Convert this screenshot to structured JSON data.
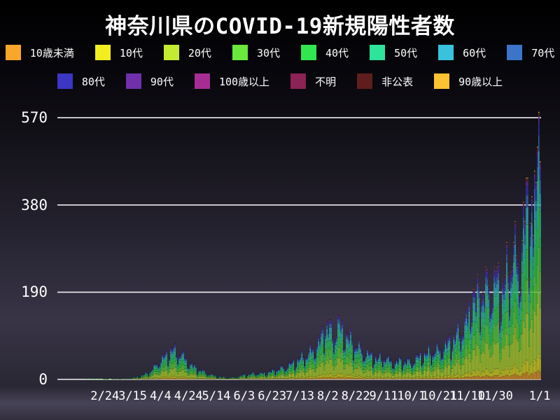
{
  "title": "神奈川県のCOVID-19新規陽性者数",
  "colors": {
    "background_top": "#000000",
    "background_bottom": "#474356",
    "grid_line": "#ffffff",
    "text": "#ffffff"
  },
  "chart_data": {
    "type": "bar",
    "stacked": true,
    "title": "神奈川県のCOVID-19新規陽性者数",
    "xlabel": "",
    "ylabel": "",
    "ylim": [
      0,
      590
    ],
    "y_ticks": [
      0,
      190,
      380,
      570
    ],
    "grid": true,
    "legend_position": "top",
    "x_start_date": "1/25",
    "x_end_date": "1/1",
    "x_range_days": 343,
    "x_ticks": [
      {
        "label": "2/24",
        "day": 30
      },
      {
        "label": "3/15",
        "day": 50
      },
      {
        "label": "4/4",
        "day": 70
      },
      {
        "label": "4/24",
        "day": 90
      },
      {
        "label": "5/14",
        "day": 110
      },
      {
        "label": "6/3",
        "day": 130
      },
      {
        "label": "6/23",
        "day": 150
      },
      {
        "label": "7/13",
        "day": 170
      },
      {
        "label": "8/2",
        "day": 190
      },
      {
        "label": "8/22",
        "day": 210
      },
      {
        "label": "9/11",
        "day": 230
      },
      {
        "label": "10/1",
        "day": 250
      },
      {
        "label": "10/21",
        "day": 270
      },
      {
        "label": "11/10",
        "day": 290
      },
      {
        "label": "11/30",
        "day": 310
      },
      {
        "label": "1/1",
        "day": 342
      }
    ],
    "age_groups": [
      {
        "name": "10歳未満",
        "color": "#f9a72b",
        "share": 0.035
      },
      {
        "name": "10代",
        "color": "#f2ee1f",
        "share": 0.06
      },
      {
        "name": "20代",
        "color": "#c3ec30",
        "share": 0.233
      },
      {
        "name": "30代",
        "color": "#6ae83c",
        "share": 0.165
      },
      {
        "name": "40代",
        "color": "#31e74f",
        "share": 0.15
      },
      {
        "name": "50代",
        "color": "#2ee39a",
        "share": 0.125
      },
      {
        "name": "60代",
        "color": "#37c3dc",
        "share": 0.085
      },
      {
        "name": "70代",
        "color": "#3b74c8",
        "share": 0.06
      },
      {
        "name": "80代",
        "color": "#3b36c4",
        "share": 0.045
      },
      {
        "name": "90代",
        "color": "#7030ac",
        "share": 0.022
      },
      {
        "name": "100歳以上",
        "color": "#a72d95",
        "share": 0.003
      },
      {
        "name": "不明",
        "color": "#8c2256",
        "share": 0.005
      },
      {
        "name": "非公表",
        "color": "#5f1e1e",
        "share": 0.007
      },
      {
        "name": "90歳以上",
        "color": "#fbc232",
        "share": 0.005
      }
    ],
    "legend_rows": [
      [
        0,
        1,
        2,
        3,
        4,
        5,
        6,
        7
      ],
      [
        8,
        9,
        10,
        11,
        12,
        13
      ]
    ],
    "daily_total_anchors": [
      [
        0,
        0
      ],
      [
        14,
        0
      ],
      [
        20,
        1
      ],
      [
        25,
        1
      ],
      [
        30,
        2
      ],
      [
        35,
        2
      ],
      [
        40,
        3
      ],
      [
        45,
        3
      ],
      [
        50,
        5
      ],
      [
        55,
        8
      ],
      [
        58,
        12
      ],
      [
        62,
        18
      ],
      [
        65,
        28
      ],
      [
        68,
        40
      ],
      [
        71,
        48
      ],
      [
        74,
        55
      ],
      [
        78,
        70
      ],
      [
        81,
        58
      ],
      [
        84,
        62
      ],
      [
        87,
        48
      ],
      [
        90,
        38
      ],
      [
        94,
        28
      ],
      [
        98,
        22
      ],
      [
        102,
        16
      ],
      [
        106,
        12
      ],
      [
        110,
        8
      ],
      [
        114,
        6
      ],
      [
        118,
        5
      ],
      [
        122,
        6
      ],
      [
        126,
        8
      ],
      [
        130,
        11
      ],
      [
        134,
        13
      ],
      [
        138,
        15
      ],
      [
        142,
        14
      ],
      [
        146,
        16
      ],
      [
        150,
        19
      ],
      [
        154,
        24
      ],
      [
        158,
        28
      ],
      [
        162,
        33
      ],
      [
        166,
        40
      ],
      [
        170,
        48
      ],
      [
        174,
        56
      ],
      [
        178,
        65
      ],
      [
        182,
        78
      ],
      [
        185,
        92
      ],
      [
        188,
        128
      ],
      [
        191,
        112
      ],
      [
        194,
        98
      ],
      [
        197,
        125
      ],
      [
        200,
        115
      ],
      [
        203,
        98
      ],
      [
        206,
        88
      ],
      [
        210,
        78
      ],
      [
        214,
        65
      ],
      [
        218,
        58
      ],
      [
        222,
        52
      ],
      [
        226,
        46
      ],
      [
        230,
        52
      ],
      [
        234,
        42
      ],
      [
        238,
        37
      ],
      [
        242,
        44
      ],
      [
        246,
        40
      ],
      [
        250,
        42
      ],
      [
        254,
        50
      ],
      [
        258,
        56
      ],
      [
        262,
        60
      ],
      [
        266,
        64
      ],
      [
        270,
        68
      ],
      [
        274,
        76
      ],
      [
        278,
        88
      ],
      [
        282,
        100
      ],
      [
        286,
        115
      ],
      [
        290,
        135
      ],
      [
        293,
        200
      ],
      [
        296,
        165
      ],
      [
        299,
        210
      ],
      [
        302,
        185
      ],
      [
        305,
        220
      ],
      [
        308,
        195
      ],
      [
        311,
        230
      ],
      [
        314,
        190
      ],
      [
        317,
        215
      ],
      [
        320,
        255
      ],
      [
        323,
        290
      ],
      [
        326,
        245
      ],
      [
        329,
        310
      ],
      [
        332,
        370
      ],
      [
        335,
        420
      ],
      [
        337,
        340
      ],
      [
        339,
        430
      ],
      [
        341,
        583
      ],
      [
        342,
        475
      ]
    ],
    "weekday_factors": [
      0.62,
      0.78,
      0.97,
      1.06,
      1.12,
      1.16,
      1.04
    ],
    "jitter_amplitude": 0.13
  }
}
